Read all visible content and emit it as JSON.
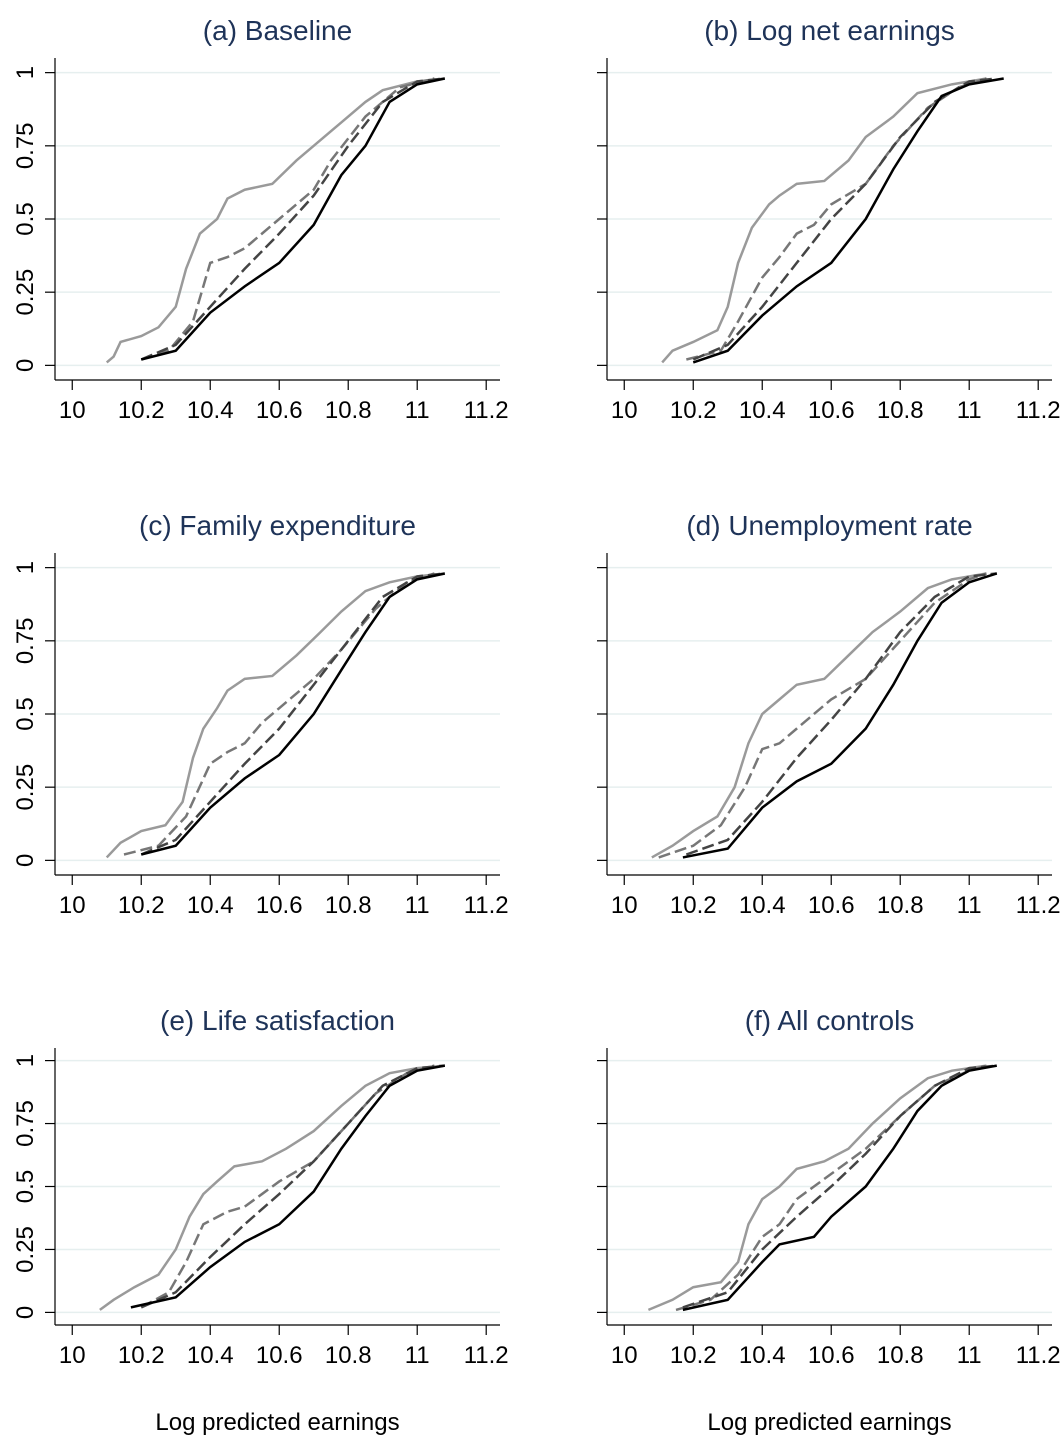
{
  "chart_data": [
    {
      "type": "line",
      "title": "(a) Baseline",
      "xlim": [
        9.95,
        11.24
      ],
      "ylim": [
        -0.05,
        1.05
      ],
      "xticks": [
        10,
        10.2,
        10.4,
        10.6,
        10.8,
        11,
        11.2
      ],
      "yticks": [
        0,
        0.25,
        0.5,
        0.75,
        1
      ],
      "ytick_labels": true,
      "grid": true,
      "series": [
        {
          "color": "#9a9a9a",
          "linestyle": "solid",
          "x": [
            10.1,
            10.12,
            10.14,
            10.2,
            10.25,
            10.3,
            10.33,
            10.37,
            10.42,
            10.45,
            10.5,
            10.58,
            10.65,
            10.7,
            10.78,
            10.85,
            10.9,
            11,
            11.08
          ],
          "values": [
            0.01,
            0.03,
            0.08,
            0.1,
            0.13,
            0.2,
            0.33,
            0.45,
            0.5,
            0.57,
            0.6,
            0.62,
            0.7,
            0.75,
            0.83,
            0.9,
            0.94,
            0.97,
            0.98
          ]
        },
        {
          "color": "#777777",
          "linestyle": "dashed",
          "x": [
            10.2,
            10.28,
            10.35,
            10.4,
            10.45,
            10.5,
            10.55,
            10.6,
            10.7,
            10.75,
            10.85,
            10.95,
            11.05
          ],
          "values": [
            0.02,
            0.05,
            0.15,
            0.35,
            0.37,
            0.4,
            0.45,
            0.5,
            0.6,
            0.7,
            0.85,
            0.95,
            0.98
          ]
        },
        {
          "color": "#444444",
          "linestyle": "dashed",
          "x": [
            10.2,
            10.3,
            10.4,
            10.5,
            10.6,
            10.7,
            10.8,
            10.9,
            11,
            11.08
          ],
          "values": [
            0.02,
            0.07,
            0.2,
            0.33,
            0.45,
            0.58,
            0.75,
            0.9,
            0.97,
            0.98
          ]
        },
        {
          "color": "#000000",
          "linestyle": "solid",
          "x": [
            10.2,
            10.3,
            10.4,
            10.5,
            10.6,
            10.7,
            10.78,
            10.85,
            10.92,
            11,
            11.08
          ],
          "values": [
            0.02,
            0.05,
            0.18,
            0.27,
            0.35,
            0.48,
            0.65,
            0.75,
            0.9,
            0.96,
            0.98
          ]
        }
      ]
    },
    {
      "type": "line",
      "title": "(b) Log net earnings",
      "xlim": [
        9.95,
        11.24
      ],
      "ylim": [
        -0.05,
        1.05
      ],
      "xticks": [
        10,
        10.2,
        10.4,
        10.6,
        10.8,
        11,
        11.2
      ],
      "yticks": [
        0,
        0.25,
        0.5,
        0.75,
        1
      ],
      "ytick_labels": false,
      "grid": true,
      "series": [
        {
          "color": "#9a9a9a",
          "linestyle": "solid",
          "x": [
            10.11,
            10.14,
            10.2,
            10.27,
            10.3,
            10.33,
            10.37,
            10.42,
            10.45,
            10.5,
            10.58,
            10.65,
            10.7,
            10.78,
            10.85,
            10.95,
            11.05
          ],
          "values": [
            0.01,
            0.05,
            0.08,
            0.12,
            0.2,
            0.35,
            0.47,
            0.55,
            0.58,
            0.62,
            0.63,
            0.7,
            0.78,
            0.85,
            0.93,
            0.96,
            0.98
          ]
        },
        {
          "color": "#777777",
          "linestyle": "dashed",
          "x": [
            10.18,
            10.28,
            10.33,
            10.4,
            10.45,
            10.5,
            10.55,
            10.6,
            10.7,
            10.78,
            10.88,
            10.97,
            11.05
          ],
          "values": [
            0.02,
            0.05,
            0.15,
            0.3,
            0.37,
            0.45,
            0.48,
            0.55,
            0.62,
            0.75,
            0.88,
            0.95,
            0.98
          ]
        },
        {
          "color": "#444444",
          "linestyle": "dashed",
          "x": [
            10.2,
            10.3,
            10.4,
            10.5,
            10.6,
            10.7,
            10.8,
            10.9,
            11,
            11.08
          ],
          "values": [
            0.02,
            0.07,
            0.2,
            0.35,
            0.5,
            0.62,
            0.78,
            0.9,
            0.97,
            0.98
          ]
        },
        {
          "color": "#000000",
          "linestyle": "solid",
          "x": [
            10.2,
            10.3,
            10.4,
            10.5,
            10.6,
            10.7,
            10.78,
            10.85,
            10.92,
            11,
            11.1
          ],
          "values": [
            0.01,
            0.05,
            0.17,
            0.27,
            0.35,
            0.5,
            0.67,
            0.8,
            0.92,
            0.96,
            0.98
          ]
        }
      ]
    },
    {
      "type": "line",
      "title": "(c) Family expenditure",
      "xlim": [
        9.95,
        11.24
      ],
      "ylim": [
        -0.05,
        1.05
      ],
      "xticks": [
        10,
        10.2,
        10.4,
        10.6,
        10.8,
        11,
        11.2
      ],
      "yticks": [
        0,
        0.25,
        0.5,
        0.75,
        1
      ],
      "ytick_labels": true,
      "grid": true,
      "series": [
        {
          "color": "#9a9a9a",
          "linestyle": "solid",
          "x": [
            10.1,
            10.14,
            10.2,
            10.27,
            10.32,
            10.35,
            10.38,
            10.42,
            10.45,
            10.5,
            10.58,
            10.65,
            10.72,
            10.78,
            10.85,
            10.92,
            11,
            11.08
          ],
          "values": [
            0.01,
            0.06,
            0.1,
            0.12,
            0.2,
            0.35,
            0.45,
            0.52,
            0.58,
            0.62,
            0.63,
            0.7,
            0.78,
            0.85,
            0.92,
            0.95,
            0.97,
            0.98
          ]
        },
        {
          "color": "#777777",
          "linestyle": "dashed",
          "x": [
            10.15,
            10.25,
            10.33,
            10.4,
            10.45,
            10.5,
            10.55,
            10.6,
            10.7,
            10.78,
            10.88,
            10.97,
            11.05
          ],
          "values": [
            0.02,
            0.05,
            0.15,
            0.33,
            0.37,
            0.4,
            0.47,
            0.52,
            0.62,
            0.72,
            0.86,
            0.95,
            0.98
          ]
        },
        {
          "color": "#444444",
          "linestyle": "dashed",
          "x": [
            10.2,
            10.3,
            10.4,
            10.5,
            10.6,
            10.7,
            10.8,
            10.9,
            11,
            11.08
          ],
          "values": [
            0.02,
            0.07,
            0.2,
            0.33,
            0.45,
            0.6,
            0.75,
            0.9,
            0.97,
            0.98
          ]
        },
        {
          "color": "#000000",
          "linestyle": "solid",
          "x": [
            10.2,
            10.3,
            10.4,
            10.5,
            10.6,
            10.7,
            10.78,
            10.85,
            10.92,
            11,
            11.08
          ],
          "values": [
            0.02,
            0.05,
            0.18,
            0.28,
            0.36,
            0.5,
            0.65,
            0.78,
            0.9,
            0.96,
            0.98
          ]
        }
      ]
    },
    {
      "type": "line",
      "title": "(d) Unemployment rate",
      "xlim": [
        9.95,
        11.24
      ],
      "ylim": [
        -0.05,
        1.05
      ],
      "xticks": [
        10,
        10.2,
        10.4,
        10.6,
        10.8,
        11,
        11.2
      ],
      "yticks": [
        0,
        0.25,
        0.5,
        0.75,
        1
      ],
      "ytick_labels": false,
      "grid": true,
      "series": [
        {
          "color": "#9a9a9a",
          "linestyle": "solid",
          "x": [
            10.08,
            10.14,
            10.2,
            10.27,
            10.32,
            10.36,
            10.4,
            10.45,
            10.5,
            10.58,
            10.65,
            10.72,
            10.8,
            10.88,
            10.95,
            11.05
          ],
          "values": [
            0.01,
            0.05,
            0.1,
            0.15,
            0.25,
            0.4,
            0.5,
            0.55,
            0.6,
            0.62,
            0.7,
            0.78,
            0.85,
            0.93,
            0.96,
            0.98
          ]
        },
        {
          "color": "#777777",
          "linestyle": "dashed",
          "x": [
            10.1,
            10.2,
            10.28,
            10.35,
            10.4,
            10.45,
            10.5,
            10.6,
            10.7,
            10.8,
            10.9,
            11,
            11.05
          ],
          "values": [
            0.01,
            0.05,
            0.12,
            0.25,
            0.38,
            0.4,
            0.45,
            0.55,
            0.62,
            0.75,
            0.88,
            0.96,
            0.98
          ]
        },
        {
          "color": "#444444",
          "linestyle": "dashed",
          "x": [
            10.18,
            10.3,
            10.4,
            10.5,
            10.6,
            10.7,
            10.8,
            10.9,
            11,
            11.08
          ],
          "values": [
            0.02,
            0.07,
            0.2,
            0.35,
            0.48,
            0.62,
            0.78,
            0.9,
            0.97,
            0.98
          ]
        },
        {
          "color": "#000000",
          "linestyle": "solid",
          "x": [
            10.17,
            10.3,
            10.4,
            10.5,
            10.6,
            10.7,
            10.78,
            10.85,
            10.92,
            11,
            11.08
          ],
          "values": [
            0.01,
            0.04,
            0.18,
            0.27,
            0.33,
            0.45,
            0.6,
            0.75,
            0.88,
            0.95,
            0.98
          ]
        }
      ]
    },
    {
      "type": "line",
      "title": "(e) Life satisfaction",
      "xlim": [
        9.95,
        11.24
      ],
      "ylim": [
        -0.05,
        1.05
      ],
      "xticks": [
        10,
        10.2,
        10.4,
        10.6,
        10.8,
        11,
        11.2
      ],
      "yticks": [
        0,
        0.25,
        0.5,
        0.75,
        1
      ],
      "ytick_labels": true,
      "grid": true,
      "x_label": "Log predicted earnings",
      "series": [
        {
          "color": "#9a9a9a",
          "linestyle": "solid",
          "x": [
            10.08,
            10.12,
            10.18,
            10.25,
            10.3,
            10.34,
            10.38,
            10.42,
            10.47,
            10.55,
            10.62,
            10.7,
            10.78,
            10.85,
            10.92,
            11,
            11.08
          ],
          "values": [
            0.01,
            0.05,
            0.1,
            0.15,
            0.25,
            0.38,
            0.47,
            0.52,
            0.58,
            0.6,
            0.65,
            0.72,
            0.82,
            0.9,
            0.95,
            0.97,
            0.98
          ]
        },
        {
          "color": "#777777",
          "linestyle": "dashed",
          "x": [
            10.2,
            10.28,
            10.33,
            10.38,
            10.45,
            10.5,
            10.55,
            10.6,
            10.7,
            10.78,
            10.88,
            10.97,
            11.05
          ],
          "values": [
            0.02,
            0.08,
            0.2,
            0.35,
            0.4,
            0.42,
            0.47,
            0.52,
            0.6,
            0.72,
            0.87,
            0.95,
            0.98
          ]
        },
        {
          "color": "#444444",
          "linestyle": "dashed",
          "x": [
            10.2,
            10.3,
            10.4,
            10.5,
            10.6,
            10.7,
            10.8,
            10.9,
            11,
            11.08
          ],
          "values": [
            0.02,
            0.08,
            0.22,
            0.35,
            0.47,
            0.6,
            0.75,
            0.9,
            0.97,
            0.98
          ]
        },
        {
          "color": "#000000",
          "linestyle": "solid",
          "x": [
            10.17,
            10.3,
            10.4,
            10.5,
            10.6,
            10.7,
            10.78,
            10.85,
            10.92,
            11,
            11.08
          ],
          "values": [
            0.02,
            0.06,
            0.18,
            0.28,
            0.35,
            0.48,
            0.65,
            0.78,
            0.9,
            0.96,
            0.98
          ]
        }
      ]
    },
    {
      "type": "line",
      "title": "(f) All controls",
      "xlim": [
        9.95,
        11.24
      ],
      "ylim": [
        -0.05,
        1.05
      ],
      "xticks": [
        10,
        10.2,
        10.4,
        10.6,
        10.8,
        11,
        11.2
      ],
      "yticks": [
        0,
        0.25,
        0.5,
        0.75,
        1
      ],
      "ytick_labels": false,
      "grid": true,
      "x_label": "Log predicted earnings",
      "series": [
        {
          "color": "#9a9a9a",
          "linestyle": "solid",
          "x": [
            10.07,
            10.14,
            10.2,
            10.28,
            10.33,
            10.36,
            10.4,
            10.45,
            10.5,
            10.58,
            10.65,
            10.72,
            10.8,
            10.88,
            10.95,
            11.05
          ],
          "values": [
            0.01,
            0.05,
            0.1,
            0.12,
            0.2,
            0.35,
            0.45,
            0.5,
            0.57,
            0.6,
            0.65,
            0.75,
            0.85,
            0.93,
            0.96,
            0.98
          ]
        },
        {
          "color": "#777777",
          "linestyle": "dashed",
          "x": [
            10.15,
            10.25,
            10.33,
            10.4,
            10.45,
            10.5,
            10.55,
            10.6,
            10.7,
            10.8,
            10.9,
            11,
            11.05
          ],
          "values": [
            0.01,
            0.05,
            0.15,
            0.3,
            0.35,
            0.45,
            0.5,
            0.55,
            0.65,
            0.78,
            0.9,
            0.96,
            0.98
          ]
        },
        {
          "color": "#444444",
          "linestyle": "dashed",
          "x": [
            10.17,
            10.3,
            10.4,
            10.5,
            10.6,
            10.7,
            10.8,
            10.9,
            11,
            11.08
          ],
          "values": [
            0.02,
            0.08,
            0.25,
            0.38,
            0.5,
            0.63,
            0.78,
            0.9,
            0.97,
            0.98
          ]
        },
        {
          "color": "#000000",
          "linestyle": "solid",
          "x": [
            10.17,
            10.3,
            10.4,
            10.45,
            10.55,
            10.6,
            10.7,
            10.78,
            10.85,
            10.92,
            11,
            11.08
          ],
          "values": [
            0.01,
            0.05,
            0.2,
            0.27,
            0.3,
            0.38,
            0.5,
            0.65,
            0.8,
            0.9,
            0.96,
            0.98
          ]
        }
      ]
    }
  ]
}
